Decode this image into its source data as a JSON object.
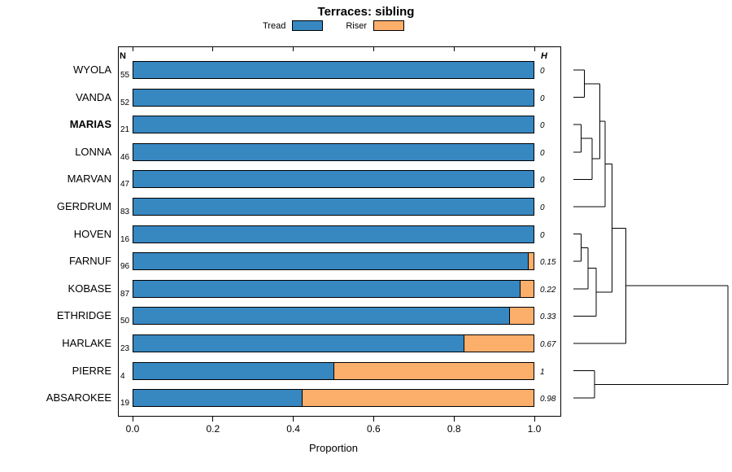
{
  "title": "Terraces: sibling",
  "columns": {
    "n_header": "N",
    "h_header": "H"
  },
  "chart_data": {
    "type": "bar",
    "stacked": true,
    "orientation": "horizontal",
    "title": "Terraces: sibling",
    "categories": [
      "WYOLA",
      "VANDA",
      "MARIAS",
      "LONNA",
      "MARVAN",
      "GERDRUM",
      "HOVEN",
      "FARNUF",
      "KOBASE",
      "ETHRIDGE",
      "HARLAKE",
      "PIERRE",
      "ABSAROKEE"
    ],
    "bold_categories": [
      "MARIAS"
    ],
    "n_values": [
      55,
      52,
      21,
      46,
      47,
      83,
      16,
      96,
      87,
      50,
      23,
      4,
      19
    ],
    "h_values": [
      "0",
      "0",
      "0",
      "0",
      "0",
      "0",
      "0",
      "0.15",
      "0.22",
      "0.33",
      "0.67",
      "1",
      "0.98"
    ],
    "series": [
      {
        "name": "Tread",
        "color": "#3787C1",
        "values": [
          1,
          1,
          1,
          1,
          1,
          1,
          1,
          0.985,
          0.965,
          0.94,
          0.825,
          0.5,
          0.42
        ]
      },
      {
        "name": "Riser",
        "color": "#FCAE6B",
        "values": [
          0,
          0,
          0,
          0,
          0,
          0,
          0,
          0.015,
          0.035,
          0.06,
          0.175,
          0.5,
          0.58
        ]
      }
    ],
    "xlim": [
      0,
      1
    ],
    "xticks": [
      "0.0",
      "0.2",
      "0.4",
      "0.6",
      "0.8",
      "1.0"
    ],
    "xlabel": "Proportion",
    "legend_position": "top",
    "grid": false
  },
  "dendrogram": {
    "root": {
      "h": 1.0,
      "children": [
        {
          "h": 0.34,
          "children": [
            {
              "h": 0.25,
              "children": [
                {
                  "h": 0.205,
                  "children": [
                    {
                      "h": 0.17,
                      "children": [
                        {
                          "h": 0.07,
                          "children": [
                            {
                              "leaf": "WYOLA"
                            },
                            {
                              "leaf": "VANDA"
                            }
                          ]
                        },
                        {
                          "h": 0.12,
                          "children": [
                            {
                              "h": 0.05,
                              "children": [
                                {
                                  "leaf": "MARIAS"
                                },
                                {
                                  "leaf": "LONNA"
                                }
                              ]
                            },
                            {
                              "leaf": "MARVAN"
                            }
                          ]
                        }
                      ]
                    },
                    {
                      "leaf": "GERDRUM"
                    }
                  ]
                },
                {
                  "h": 0.147,
                  "children": [
                    {
                      "h": 0.095,
                      "children": [
                        {
                          "h": 0.05,
                          "children": [
                            {
                              "leaf": "HOVEN"
                            },
                            {
                              "leaf": "FARNUF"
                            }
                          ]
                        },
                        {
                          "leaf": "KOBASE"
                        }
                      ]
                    },
                    {
                      "leaf": "ETHRIDGE"
                    }
                  ]
                }
              ]
            },
            {
              "leaf": "HARLAKE"
            }
          ]
        },
        {
          "h": 0.137,
          "children": [
            {
              "leaf": "PIERRE"
            },
            {
              "leaf": "ABSAROKEE"
            }
          ]
        }
      ]
    },
    "line_color": "#000000"
  },
  "colors": {
    "tread": "#3787C1",
    "riser": "#FCAE6B",
    "axis": "#000000",
    "background": "#FFFFFF"
  }
}
